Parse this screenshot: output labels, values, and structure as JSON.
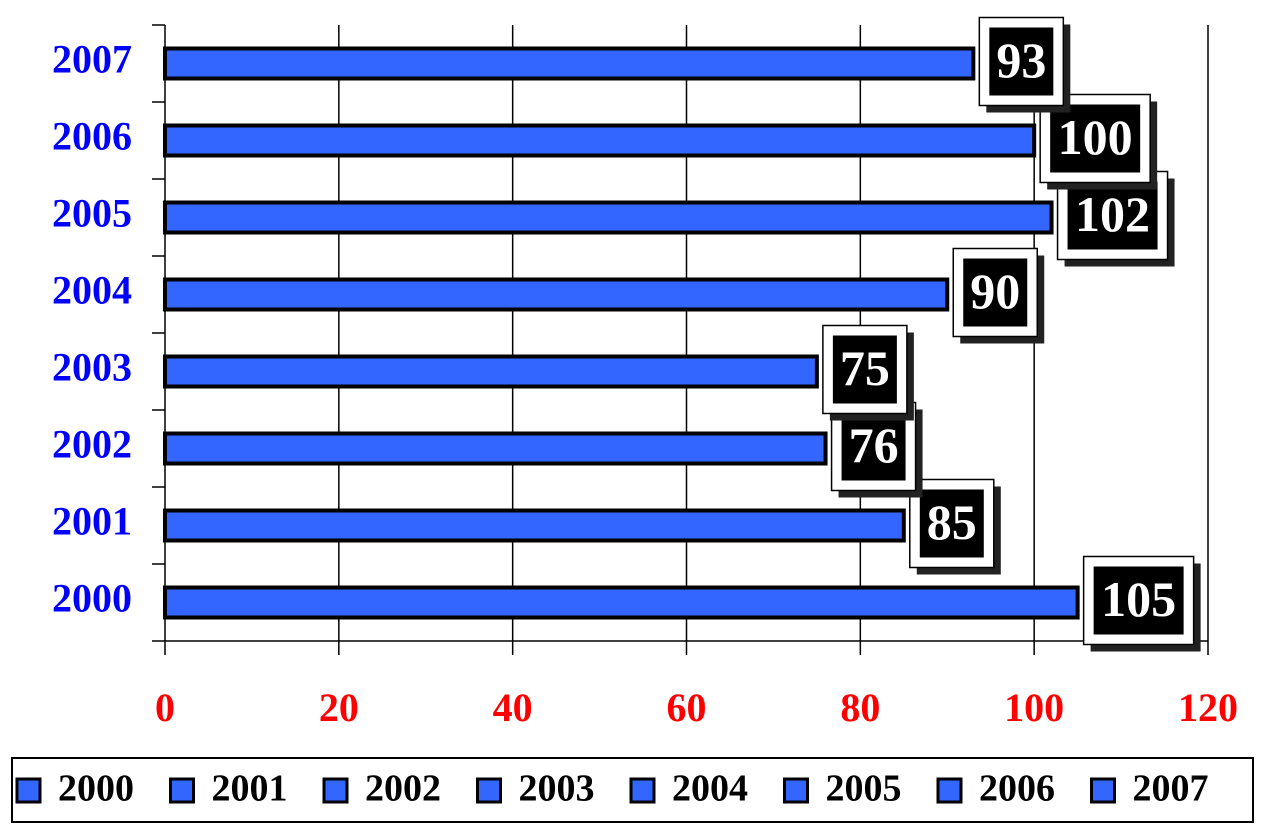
{
  "chart_data": {
    "type": "bar",
    "orientation": "horizontal",
    "categories": [
      "2000",
      "2001",
      "2002",
      "2003",
      "2004",
      "2005",
      "2006",
      "2007"
    ],
    "values": [
      105,
      85,
      76,
      75,
      90,
      102,
      100,
      93
    ],
    "color": "#3366ff",
    "xlim": [
      0,
      120
    ],
    "xticks": [
      0,
      20,
      40,
      60,
      80,
      100,
      120
    ],
    "grid": true,
    "legend": "bottom"
  }
}
